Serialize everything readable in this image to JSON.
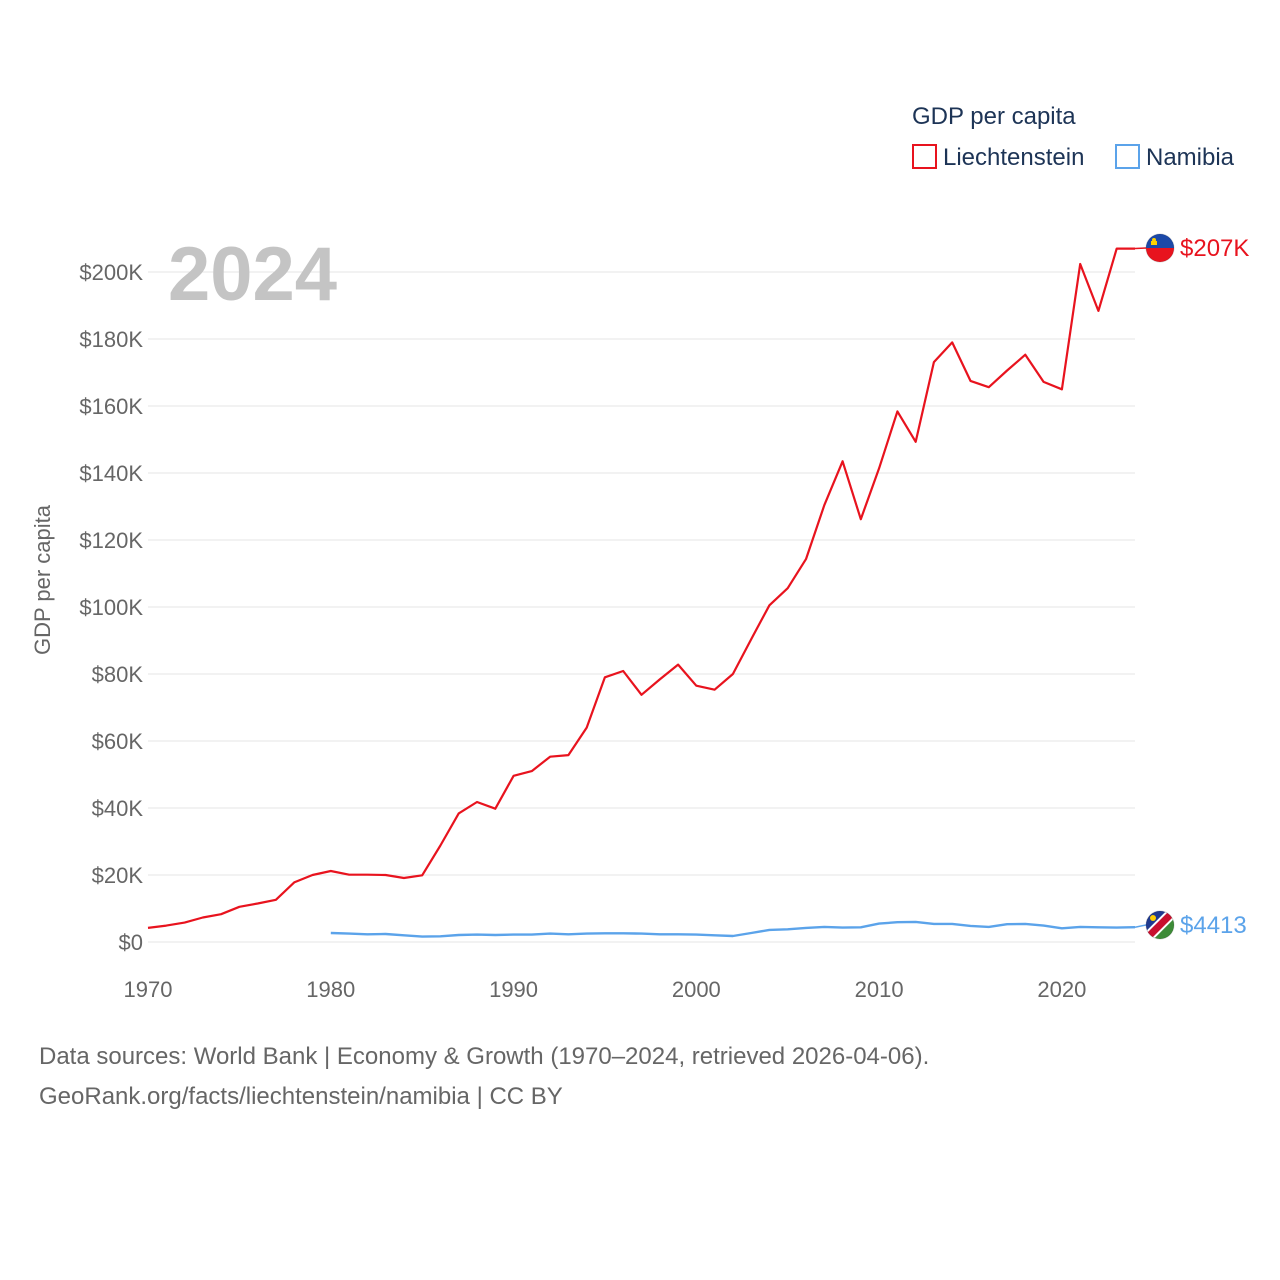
{
  "chart_data": {
    "type": "line",
    "title": "GDP per capita",
    "ylabel": "GDP per capita",
    "xlabel": "",
    "current_year_label": "2024",
    "xlim": [
      1970,
      2024
    ],
    "ylim": [
      0,
      200000
    ],
    "x_ticks": [
      1970,
      1980,
      1990,
      2000,
      2010,
      2020
    ],
    "x_tick_labels": [
      "1970",
      "1980",
      "1990",
      "2000",
      "2010",
      "2020"
    ],
    "y_ticks": [
      0,
      20000,
      40000,
      60000,
      80000,
      100000,
      120000,
      140000,
      160000,
      180000,
      200000
    ],
    "y_tick_labels": [
      "$0",
      "$20K",
      "$40K",
      "$60K",
      "$80K",
      "$100K",
      "$120K",
      "$140K",
      "$160K",
      "$180K",
      "$200K"
    ],
    "grid": true,
    "legend": {
      "title": "GDP per capita",
      "position": "top-right"
    },
    "series": [
      {
        "name": "Liechtenstein",
        "color": "#e8131e",
        "end_label": "$207K",
        "flag_icon": "liechtenstein-flag-icon",
        "flag_colors": [
          "#1c49a8",
          "#e8131e",
          "#ffd200"
        ],
        "x": [
          1970,
          1971,
          1972,
          1973,
          1974,
          1975,
          1976,
          1977,
          1978,
          1979,
          1980,
          1981,
          1982,
          1983,
          1984,
          1985,
          1986,
          1987,
          1988,
          1989,
          1990,
          1991,
          1992,
          1993,
          1994,
          1995,
          1996,
          1997,
          1998,
          1999,
          2000,
          2001,
          2002,
          2003,
          2004,
          2005,
          2006,
          2007,
          2008,
          2009,
          2010,
          2011,
          2012,
          2013,
          2014,
          2015,
          2016,
          2017,
          2018,
          2019,
          2020,
          2021,
          2022,
          2023,
          2024
        ],
        "values": [
          4200,
          4900,
          5800,
          7300,
          8300,
          10500,
          11500,
          12600,
          17800,
          20000,
          21200,
          20100,
          20100,
          20000,
          19100,
          19900,
          28800,
          38400,
          41800,
          39800,
          49600,
          51000,
          55300,
          55800,
          64000,
          79000,
          80900,
          73800,
          78400,
          82800,
          76500,
          75300,
          80000,
          90400,
          100500,
          105600,
          114300,
          130400,
          143500,
          126200,
          141400,
          158400,
          149300,
          173100,
          179000,
          167500,
          165600,
          170600,
          175300,
          167200,
          165000,
          202400,
          188400,
          207000,
          207000
        ]
      },
      {
        "name": "Namibia",
        "color": "#5ba3ea",
        "end_label": "$4413",
        "flag_icon": "namibia-flag-icon",
        "flag_colors": [
          "#1f3a8f",
          "#c8102e",
          "#3d8b37",
          "#ffffff",
          "#ffce00"
        ],
        "x": [
          1980,
          1981,
          1982,
          1983,
          1984,
          1985,
          1986,
          1987,
          1988,
          1989,
          1990,
          1991,
          1992,
          1993,
          1994,
          1995,
          1996,
          1997,
          1998,
          1999,
          2000,
          2001,
          2002,
          2003,
          2004,
          2005,
          2006,
          2007,
          2008,
          2009,
          2010,
          2011,
          2012,
          2013,
          2014,
          2015,
          2016,
          2017,
          2018,
          2019,
          2020,
          2021,
          2022,
          2023,
          2024
        ],
        "values": [
          2700,
          2500,
          2300,
          2400,
          2000,
          1600,
          1700,
          2100,
          2200,
          2100,
          2200,
          2200,
          2500,
          2300,
          2500,
          2600,
          2600,
          2500,
          2300,
          2300,
          2200,
          2000,
          1800,
          2700,
          3600,
          3800,
          4200,
          4500,
          4300,
          4400,
          5500,
          5900,
          6000,
          5400,
          5400,
          4800,
          4500,
          5300,
          5400,
          4900,
          4100,
          4500,
          4400,
          4300,
          4413
        ]
      }
    ]
  },
  "footer": {
    "line1": "Data sources: World Bank | Economy & Growth (1970–2024, retrieved 2026-04-06).",
    "line2": "GeoRank.org/facts/liechtenstein/namibia | CC BY"
  }
}
